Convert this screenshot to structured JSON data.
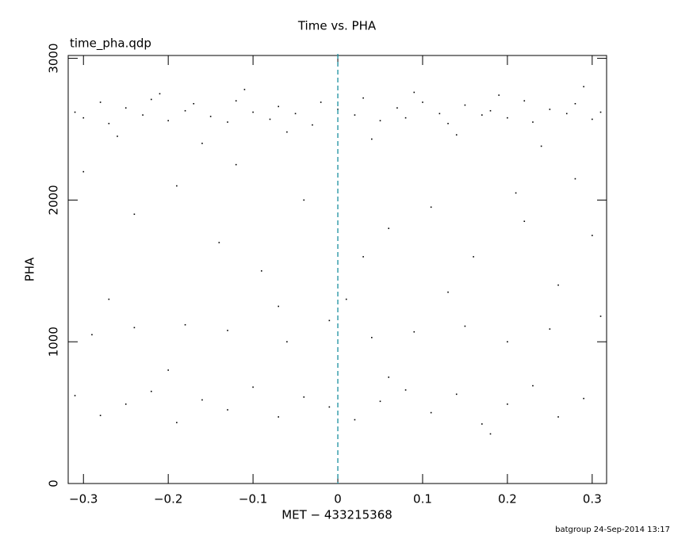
{
  "chart_data": {
    "type": "scatter",
    "title": "Time vs. PHA",
    "subtitle": "time_pha.qdp",
    "x_label": "MET − 433215368",
    "y_label": "PHA",
    "footer": "batgroup 24-Sep-2014 13:17",
    "color": "#000000",
    "marker_color": "#1a8fa0",
    "vline": 0,
    "xlim": [
      -0.318,
      0.317
    ],
    "ylim": [
      0,
      3020
    ],
    "xticks": [
      {
        "value": -0.3,
        "label": "−0.3"
      },
      {
        "value": -0.2,
        "label": "−0.2"
      },
      {
        "value": -0.1,
        "label": "−0.1"
      },
      0,
      0.1,
      0.2,
      0.3
    ],
    "yticks": [
      0,
      1000,
      2000,
      3000
    ],
    "x": [
      -0.31,
      -0.3,
      -0.28,
      -0.27,
      -0.25,
      -0.23,
      -0.22,
      -0.2,
      -0.18,
      -0.17,
      -0.15,
      -0.13,
      -0.12,
      -0.1,
      -0.08,
      -0.07,
      -0.05,
      -0.03,
      -0.02,
      0.0,
      0.02,
      0.03,
      0.05,
      0.07,
      0.08,
      0.1,
      0.12,
      0.13,
      0.15,
      0.17,
      0.18,
      0.2,
      0.22,
      0.23,
      0.25,
      0.27,
      0.28,
      0.3,
      0.31,
      -0.26,
      -0.16,
      -0.06,
      0.04,
      0.14,
      0.24,
      -0.21,
      -0.11,
      0.09,
      0.19,
      0.29,
      -0.3,
      -0.24,
      -0.19,
      -0.14,
      -0.09,
      -0.04,
      0.01,
      0.06,
      0.11,
      0.16,
      0.21,
      0.26,
      0.3,
      -0.27,
      -0.12,
      0.03,
      0.13,
      0.22,
      -0.07,
      0.28,
      -0.29,
      -0.24,
      -0.18,
      -0.13,
      -0.06,
      -0.01,
      0.04,
      0.09,
      0.15,
      0.2,
      0.25,
      0.31,
      -0.31,
      -0.28,
      -0.25,
      -0.22,
      -0.19,
      -0.16,
      -0.13,
      -0.1,
      -0.07,
      -0.04,
      -0.01,
      0.02,
      0.05,
      0.08,
      0.11,
      0.14,
      0.17,
      0.2,
      0.23,
      0.26,
      0.29,
      -0.2,
      0.06,
      0.18
    ],
    "values": [
      2620,
      2580,
      2690,
      2540,
      2650,
      2600,
      2710,
      2560,
      2630,
      2680,
      2590,
      2550,
      2700,
      2620,
      2570,
      2660,
      2610,
      2530,
      2690,
      2640,
      2600,
      2720,
      2560,
      2650,
      2580,
      2690,
      2610,
      2540,
      2670,
      2600,
      2630,
      2580,
      2700,
      2550,
      2640,
      2610,
      2680,
      2570,
      2620,
      2450,
      2400,
      2480,
      2430,
      2460,
      2380,
      2750,
      2780,
      2760,
      2740,
      2800,
      2200,
      1900,
      2100,
      1700,
      1500,
      2000,
      1300,
      1800,
      1950,
      1600,
      2050,
      1400,
      1750,
      1300,
      2250,
      1600,
      1350,
      1850,
      1250,
      2150,
      1050,
      1100,
      1120,
      1080,
      1000,
      1150,
      1030,
      1070,
      1110,
      1000,
      1090,
      1180,
      620,
      480,
      560,
      650,
      430,
      590,
      520,
      680,
      470,
      610,
      540,
      450,
      580,
      660,
      500,
      630,
      420,
      560,
      690,
      470,
      600,
      800,
      750,
      350
    ]
  }
}
